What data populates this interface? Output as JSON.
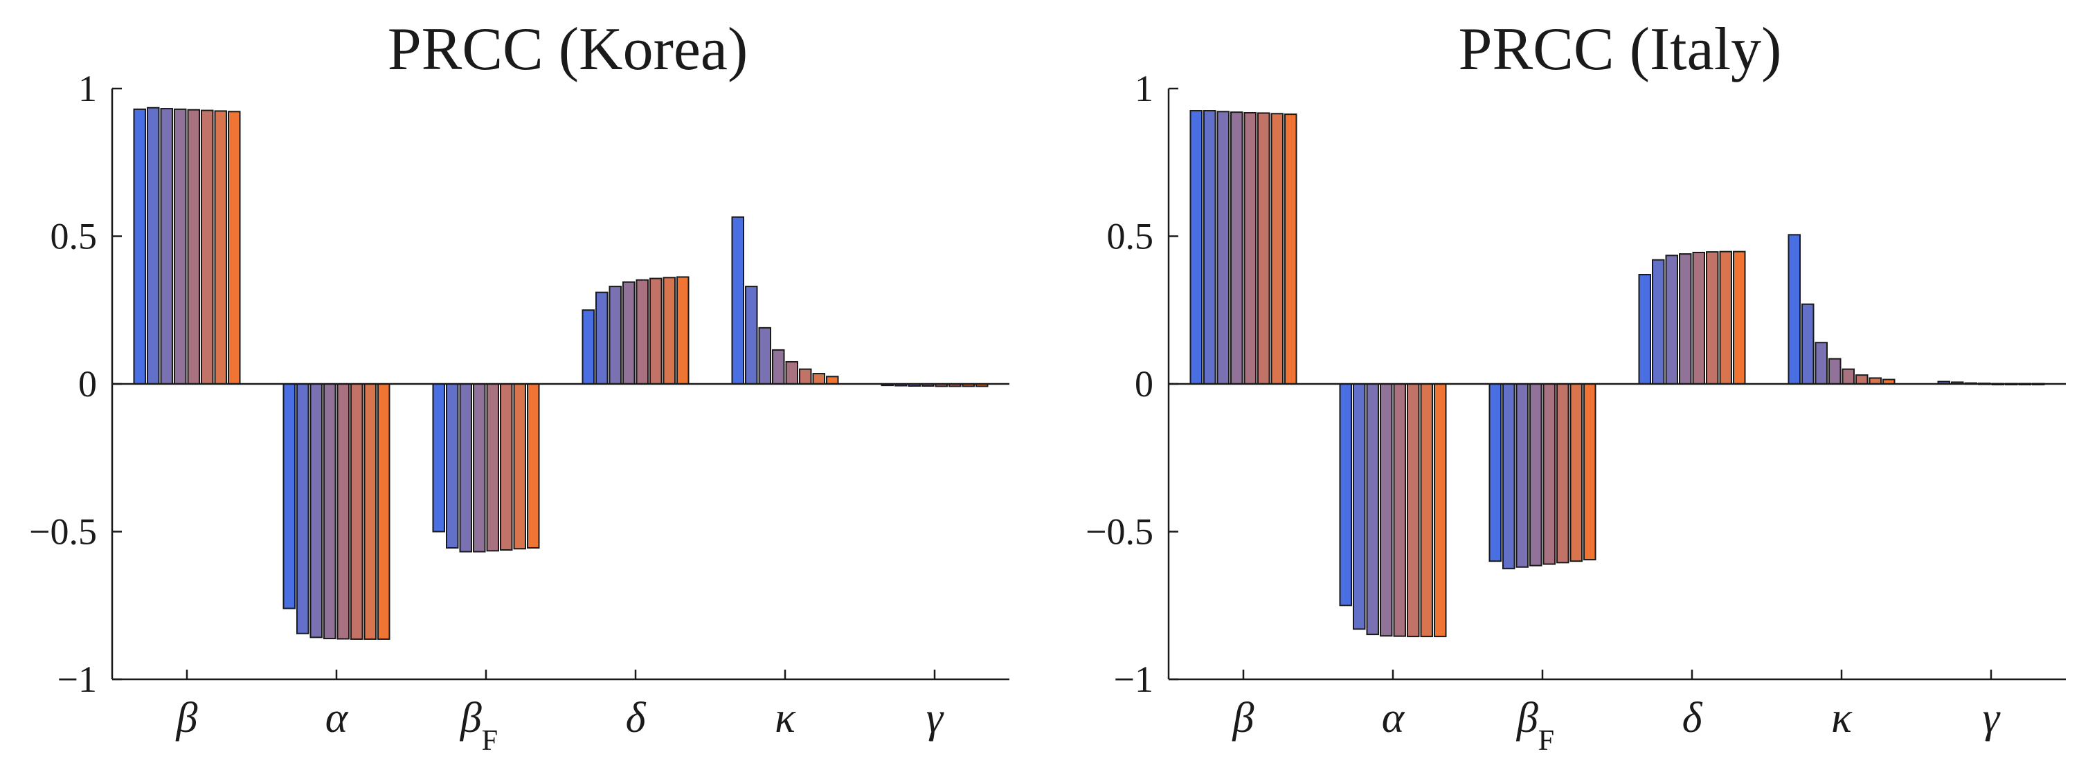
{
  "chart_data": [
    {
      "type": "bar",
      "title": "PRCC (Korea)",
      "categories": [
        "β",
        "α",
        "β_F",
        "δ",
        "κ",
        "γ"
      ],
      "category_display": [
        {
          "main": "β",
          "sub": ""
        },
        {
          "main": "α",
          "sub": ""
        },
        {
          "main": "β",
          "sub": "F"
        },
        {
          "main": "δ",
          "sub": ""
        },
        {
          "main": "κ",
          "sub": ""
        },
        {
          "main": "γ",
          "sub": ""
        }
      ],
      "bars_per_category": 8,
      "values": [
        [
          0.93,
          0.935,
          0.932,
          0.93,
          0.928,
          0.926,
          0.924,
          0.922
        ],
        [
          -0.76,
          -0.845,
          -0.858,
          -0.862,
          -0.863,
          -0.864,
          -0.864,
          -0.864
        ],
        [
          -0.5,
          -0.555,
          -0.568,
          -0.568,
          -0.565,
          -0.562,
          -0.558,
          -0.555
        ],
        [
          0.25,
          0.31,
          0.33,
          0.345,
          0.352,
          0.357,
          0.36,
          0.362
        ],
        [
          0.565,
          0.33,
          0.19,
          0.115,
          0.075,
          0.05,
          0.035,
          0.025
        ],
        [
          -0.005,
          -0.006,
          -0.007,
          -0.007,
          -0.008,
          -0.008,
          -0.008,
          -0.008
        ]
      ],
      "ylim": [
        -1,
        1
      ],
      "yticks": [
        -1,
        -0.5,
        0,
        0.5,
        1
      ],
      "ytick_labels": [
        "−1",
        "−0.5",
        "0",
        "0.5",
        "1"
      ],
      "xlabel": "",
      "ylabel": "",
      "grid": false,
      "colors": {
        "start": "#4a6fe3",
        "end": "#f07535",
        "edge": "#1a1a1a",
        "axis": "#1a1a1a"
      }
    },
    {
      "type": "bar",
      "title": "PRCC (Italy)",
      "categories": [
        "β",
        "α",
        "β_F",
        "δ",
        "κ",
        "γ"
      ],
      "category_display": [
        {
          "main": "β",
          "sub": ""
        },
        {
          "main": "α",
          "sub": ""
        },
        {
          "main": "β",
          "sub": "F"
        },
        {
          "main": "δ",
          "sub": ""
        },
        {
          "main": "κ",
          "sub": ""
        },
        {
          "main": "γ",
          "sub": ""
        }
      ],
      "bars_per_category": 8,
      "values": [
        [
          0.925,
          0.925,
          0.922,
          0.92,
          0.918,
          0.917,
          0.915,
          0.913
        ],
        [
          -0.75,
          -0.83,
          -0.848,
          -0.853,
          -0.854,
          -0.855,
          -0.855,
          -0.855
        ],
        [
          -0.6,
          -0.625,
          -0.62,
          -0.615,
          -0.61,
          -0.605,
          -0.6,
          -0.595
        ],
        [
          0.37,
          0.42,
          0.435,
          0.44,
          0.445,
          0.447,
          0.448,
          0.448
        ],
        [
          0.505,
          0.27,
          0.14,
          0.085,
          0.05,
          0.03,
          0.02,
          0.015
        ],
        [
          0.008,
          0.006,
          0.003,
          0.002,
          0.001,
          0.001,
          0.001,
          0.001
        ]
      ],
      "ylim": [
        -1,
        1
      ],
      "yticks": [
        -1,
        -0.5,
        0,
        0.5,
        1
      ],
      "ytick_labels": [
        "−1",
        "−0.5",
        "0",
        "0.5",
        "1"
      ],
      "xlabel": "",
      "ylabel": "",
      "grid": false,
      "colors": {
        "start": "#4a6fe3",
        "end": "#f07535",
        "edge": "#1a1a1a",
        "axis": "#1a1a1a"
      }
    }
  ]
}
